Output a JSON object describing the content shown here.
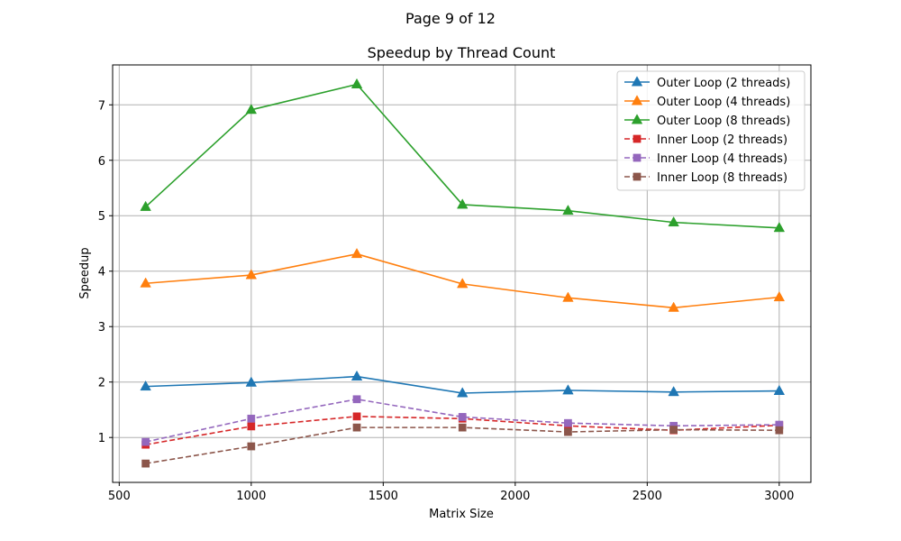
{
  "page_label": "Page 9 of 12",
  "chart_data": {
    "type": "line",
    "title": "Speedup by Thread Count",
    "xlabel": "Matrix Size",
    "ylabel": "Speedup",
    "x": [
      600,
      1000,
      1400,
      1800,
      2200,
      2600,
      3000
    ],
    "xlim": [
      475,
      3120
    ],
    "ylim": [
      0.19,
      7.72
    ],
    "xticks": [
      500,
      1000,
      1500,
      2000,
      2500,
      3000
    ],
    "yticks": [
      1,
      2,
      3,
      4,
      5,
      6,
      7
    ],
    "grid": true,
    "legend_position": "top-right",
    "series": [
      {
        "name": "Outer Loop (2 threads)",
        "color": "#1f77b4",
        "marker": "triangle",
        "linestyle": "solid",
        "values": [
          1.92,
          1.99,
          2.1,
          1.8,
          1.85,
          1.82,
          1.84
        ]
      },
      {
        "name": "Outer Loop (4 threads)",
        "color": "#ff7f0e",
        "marker": "triangle",
        "linestyle": "solid",
        "values": [
          3.78,
          3.93,
          4.31,
          3.77,
          3.52,
          3.34,
          3.53
        ]
      },
      {
        "name": "Outer Loop (8 threads)",
        "color": "#2ca02c",
        "marker": "triangle",
        "linestyle": "solid",
        "values": [
          5.16,
          6.91,
          7.37,
          5.2,
          5.09,
          4.88,
          4.78
        ]
      },
      {
        "name": "Inner Loop (2 threads)",
        "color": "#d62728",
        "marker": "square",
        "linestyle": "dashed",
        "values": [
          0.87,
          1.2,
          1.38,
          1.34,
          1.21,
          1.13,
          1.22
        ]
      },
      {
        "name": "Inner Loop (4 threads)",
        "color": "#9467bd",
        "marker": "square",
        "linestyle": "dashed",
        "values": [
          0.92,
          1.34,
          1.69,
          1.37,
          1.26,
          1.21,
          1.23
        ]
      },
      {
        "name": "Inner Loop (8 threads)",
        "color": "#8c564b",
        "marker": "square",
        "linestyle": "dashed",
        "values": [
          0.53,
          0.84,
          1.18,
          1.18,
          1.1,
          1.14,
          1.13
        ]
      }
    ]
  }
}
